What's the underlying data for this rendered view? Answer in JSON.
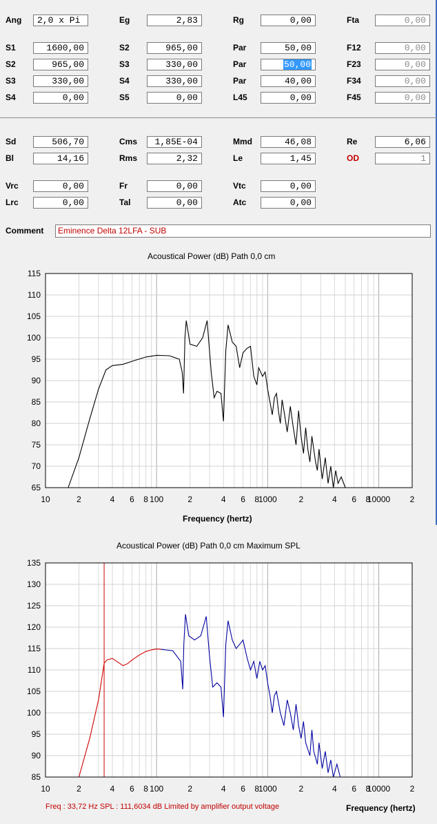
{
  "params": {
    "row1": [
      {
        "label": "Ang",
        "value": "2,0 x Pi",
        "align": "left"
      },
      {
        "label": "Eg",
        "value": "2,83"
      },
      {
        "label": "Rg",
        "value": "0,00"
      },
      {
        "label": "Fta",
        "value": "0,00",
        "disabled": true
      }
    ],
    "rows2": [
      [
        {
          "label": "S1",
          "value": "1600,00"
        },
        {
          "label": "S2",
          "value": "965,00"
        },
        {
          "label": "Par",
          "value": "50,00"
        },
        {
          "label": "F12",
          "value": "0,00",
          "disabled": true
        }
      ],
      [
        {
          "label": "S2",
          "value": "965,00"
        },
        {
          "label": "S3",
          "value": "330,00"
        },
        {
          "label": "Par",
          "value": "50,00",
          "selected": true
        },
        {
          "label": "F23",
          "value": "0,00",
          "disabled": true
        }
      ],
      [
        {
          "label": "S3",
          "value": "330,00"
        },
        {
          "label": "S4",
          "value": "330,00"
        },
        {
          "label": "Par",
          "value": "40,00"
        },
        {
          "label": "F34",
          "value": "0,00",
          "disabled": true
        }
      ],
      [
        {
          "label": "S4",
          "value": "0,00"
        },
        {
          "label": "S5",
          "value": "0,00"
        },
        {
          "label": "L45",
          "value": "0,00"
        },
        {
          "label": "F45",
          "value": "0,00",
          "disabled": true
        }
      ]
    ],
    "rows3": [
      [
        {
          "label": "Sd",
          "value": "506,70"
        },
        {
          "label": "Cms",
          "value": "1,85E-04"
        },
        {
          "label": "Mmd",
          "value": "46,08"
        },
        {
          "label": "Re",
          "value": "6,06"
        }
      ],
      [
        {
          "label": "Bl",
          "value": "14,16"
        },
        {
          "label": "Rms",
          "value": "2,32"
        },
        {
          "label": "Le",
          "value": "1,45"
        },
        {
          "label": "OD",
          "value": "1",
          "disabled": true,
          "red_label": true
        }
      ]
    ],
    "rows4": [
      [
        {
          "label": "Vrc",
          "value": "0,00"
        },
        {
          "label": "Fr",
          "value": "0,00"
        },
        {
          "label": "Vtc",
          "value": "0,00"
        }
      ],
      [
        {
          "label": "Lrc",
          "value": "0,00"
        },
        {
          "label": "Tal",
          "value": "0,00"
        },
        {
          "label": "Atc",
          "value": "0,00"
        }
      ]
    ],
    "comment_label": "Comment",
    "comment_value": "Eminence Delta 12LFA - SUB"
  },
  "colors": {
    "accent_red": "#c00000",
    "curve_black": "#000000",
    "curve_blue": "#0000a0",
    "curve_red": "#d00000",
    "selection": "#3399ff"
  },
  "chart_data": [
    {
      "type": "line",
      "title": "Acoustical Power (dB)    Path 0,0 cm",
      "xlabel": "Frequency (hertz)",
      "ylabel": "",
      "xscale": "log",
      "xlim": [
        10,
        20000
      ],
      "ylim": [
        65,
        115
      ],
      "yticks": [
        65,
        70,
        75,
        80,
        85,
        90,
        95,
        100,
        105,
        110,
        115
      ],
      "xtick_labels": [
        "10",
        "2",
        "4",
        "6",
        "8",
        "100",
        "2",
        "4",
        "6",
        "8",
        "1000",
        "2",
        "4",
        "6",
        "8",
        "10000",
        "2"
      ],
      "grid": true,
      "series": [
        {
          "points": [
            [
              16,
              65
            ],
            [
              20,
              72
            ],
            [
              25,
              81
            ],
            [
              30,
              88
            ],
            [
              35,
              92.5
            ],
            [
              40,
              93.5
            ],
            [
              50,
              93.8
            ],
            [
              60,
              94.5
            ],
            [
              80,
              95.5
            ],
            [
              100,
              95.9
            ],
            [
              130,
              95.8
            ],
            [
              160,
              95
            ],
            [
              170,
              92
            ],
            [
              175,
              87
            ],
            [
              180,
              100
            ],
            [
              185,
              104
            ],
            [
              200,
              98.5
            ],
            [
              230,
              98
            ],
            [
              260,
              100
            ],
            [
              285,
              104
            ],
            [
              310,
              92
            ],
            [
              330,
              86
            ],
            [
              350,
              87.5
            ],
            [
              380,
              87
            ],
            [
              400,
              80.5
            ],
            [
              420,
              97
            ],
            [
              440,
              103
            ],
            [
              480,
              99
            ],
            [
              520,
              98
            ],
            [
              560,
              93
            ],
            [
              600,
              96.5
            ],
            [
              650,
              97.5
            ],
            [
              700,
              98
            ],
            [
              750,
              91
            ],
            [
              800,
              89
            ],
            [
              830,
              93
            ],
            [
              900,
              91
            ],
            [
              950,
              92
            ],
            [
              1000,
              88
            ],
            [
              1050,
              85
            ],
            [
              1100,
              82
            ],
            [
              1150,
              86
            ],
            [
              1200,
              87
            ],
            [
              1250,
              83
            ],
            [
              1300,
              80
            ],
            [
              1350,
              85.5
            ],
            [
              1400,
              83
            ],
            [
              1500,
              78
            ],
            [
              1600,
              84
            ],
            [
              1700,
              79
            ],
            [
              1800,
              75
            ],
            [
              1900,
              83
            ],
            [
              2000,
              77
            ],
            [
              2100,
              73
            ],
            [
              2200,
              79
            ],
            [
              2300,
              74
            ],
            [
              2400,
              71
            ],
            [
              2500,
              77
            ],
            [
              2700,
              71
            ],
            [
              2800,
              69
            ],
            [
              2900,
              74
            ],
            [
              3100,
              67
            ],
            [
              3300,
              72
            ],
            [
              3500,
              66
            ],
            [
              3700,
              70
            ],
            [
              3900,
              65
            ],
            [
              4100,
              69
            ],
            [
              4300,
              66
            ],
            [
              4600,
              67.5
            ],
            [
              5000,
              65
            ]
          ]
        }
      ]
    },
    {
      "type": "line",
      "title": "Acoustical Power (dB)    Path 0,0 cm    Maximum SPL",
      "xlabel": "Frequency (hertz)",
      "ylabel": "",
      "xscale": "log",
      "xlim": [
        10,
        20000
      ],
      "ylim": [
        85,
        135
      ],
      "yticks": [
        85,
        90,
        95,
        100,
        105,
        110,
        115,
        120,
        125,
        130,
        135
      ],
      "xtick_labels": [
        "10",
        "2",
        "4",
        "6",
        "8",
        "100",
        "2",
        "4",
        "6",
        "8",
        "1000",
        "2",
        "4",
        "6",
        "8",
        "10000",
        "2"
      ],
      "grid": true,
      "marker_frequency": 33.72,
      "status_text": "Freq : 33,72 Hz     SPL : 111,6034 dB     Limited by amplifier output voltage",
      "series": [
        {
          "color": "red",
          "points": [
            [
              20,
              85
            ],
            [
              25,
              94
            ],
            [
              30,
              103
            ],
            [
              33.72,
              111.6
            ],
            [
              36,
              112.4
            ],
            [
              40,
              112.7
            ],
            [
              45,
              111.8
            ],
            [
              50,
              111
            ],
            [
              55,
              111.5
            ],
            [
              60,
              112.3
            ],
            [
              70,
              113.5
            ],
            [
              80,
              114.3
            ],
            [
              90,
              114.7
            ],
            [
              100,
              114.9
            ],
            [
              110,
              114.8
            ]
          ]
        },
        {
          "color": "blue",
          "points": [
            [
              110,
              114.8
            ],
            [
              140,
              114.5
            ],
            [
              165,
              112
            ],
            [
              172,
              105.5
            ],
            [
              176,
              116
            ],
            [
              182,
              123
            ],
            [
              195,
              118
            ],
            [
              220,
              117
            ],
            [
              250,
              118
            ],
            [
              280,
              122.5
            ],
            [
              300,
              113
            ],
            [
              320,
              106
            ],
            [
              350,
              107
            ],
            [
              380,
              106
            ],
            [
              400,
              99
            ],
            [
              420,
              116
            ],
            [
              440,
              121.5
            ],
            [
              480,
              117
            ],
            [
              520,
              115
            ],
            [
              560,
              116
            ],
            [
              600,
              117
            ],
            [
              650,
              113
            ],
            [
              700,
              110
            ],
            [
              750,
              112
            ],
            [
              800,
              108
            ],
            [
              850,
              112
            ],
            [
              900,
              110
            ],
            [
              950,
              111
            ],
            [
              1000,
              107
            ],
            [
              1050,
              104
            ],
            [
              1100,
              100
            ],
            [
              1150,
              104
            ],
            [
              1200,
              105
            ],
            [
              1300,
              100
            ],
            [
              1400,
              97
            ],
            [
              1500,
              103
            ],
            [
              1600,
              100
            ],
            [
              1700,
              96
            ],
            [
              1800,
              102
            ],
            [
              1900,
              97
            ],
            [
              2000,
              94
            ],
            [
              2100,
              98
            ],
            [
              2200,
              93
            ],
            [
              2400,
              90
            ],
            [
              2500,
              96
            ],
            [
              2600,
              91
            ],
            [
              2800,
              88
            ],
            [
              2900,
              93
            ],
            [
              3100,
              87
            ],
            [
              3300,
              91
            ],
            [
              3500,
              86
            ],
            [
              3700,
              89
            ],
            [
              3900,
              85
            ],
            [
              4200,
              88
            ],
            [
              4500,
              85
            ]
          ]
        }
      ]
    }
  ]
}
